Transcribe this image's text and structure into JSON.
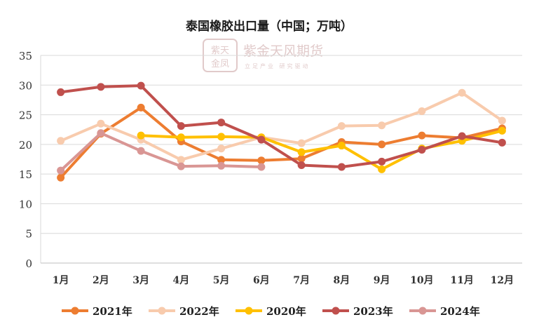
{
  "chart_data": {
    "type": "line",
    "title": "泰国橡胶出口量（中国；万吨）",
    "xlabel": "",
    "ylabel": "",
    "categories": [
      "1月",
      "2月",
      "3月",
      "4月",
      "5月",
      "6月",
      "7月",
      "8月",
      "9月",
      "10月",
      "11月",
      "12月"
    ],
    "ylim": [
      0,
      35
    ],
    "yticks": [
      0,
      5,
      10,
      15,
      20,
      25,
      30,
      35
    ],
    "grid": true,
    "legend_position": "bottom",
    "series": [
      {
        "name": "2021年",
        "color": "#ED7D31",
        "values": [
          14.4,
          21.8,
          26.2,
          20.5,
          17.4,
          17.3,
          17.6,
          20.4,
          20.0,
          21.5,
          21.1,
          22.7
        ]
      },
      {
        "name": "2022年",
        "color": "#F8CBAD",
        "values": [
          20.6,
          23.5,
          20.8,
          17.4,
          19.3,
          21.2,
          20.2,
          23.1,
          23.2,
          25.6,
          28.7,
          24.0
        ]
      },
      {
        "name": "2020年",
        "color": "#FFC000",
        "values": [
          null,
          null,
          21.5,
          21.2,
          21.3,
          21.2,
          18.7,
          19.8,
          15.8,
          19.3,
          20.6,
          22.3
        ]
      },
      {
        "name": "2023年",
        "color": "#C0504D",
        "values": [
          28.8,
          29.7,
          29.9,
          23.1,
          23.7,
          20.8,
          16.5,
          16.2,
          17.1,
          19.1,
          21.4,
          20.3
        ]
      },
      {
        "name": "2024年",
        "color": "#D99694",
        "values": [
          15.6,
          21.9,
          18.9,
          16.3,
          16.4,
          16.2,
          null,
          null,
          null,
          null,
          null,
          null
        ]
      }
    ]
  },
  "watermark": {
    "logo_text": "紫天金凤",
    "brand": "紫金天风期货",
    "tagline": "立足产业 研究驱动",
    "color": "#C9A0A0"
  }
}
